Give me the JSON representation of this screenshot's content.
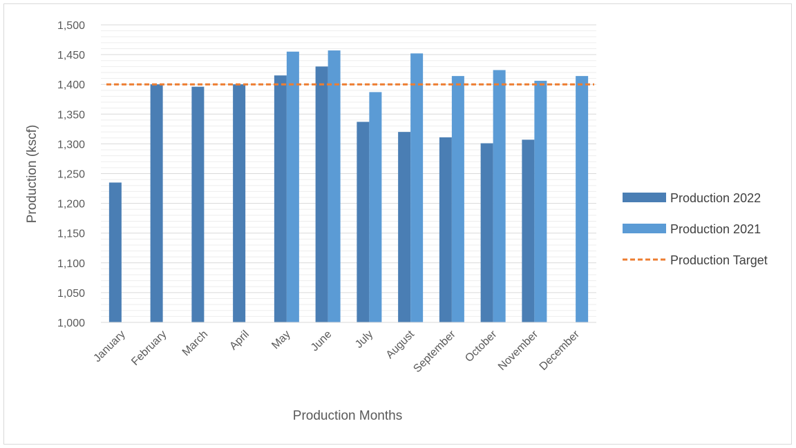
{
  "chart_data": {
    "type": "bar",
    "categories": [
      "January",
      "February",
      "March",
      "April",
      "May",
      "June",
      "July",
      "August",
      "September",
      "October",
      "November",
      "December"
    ],
    "series": [
      {
        "name": "Production 2022",
        "color": "#4a7eb4",
        "values": [
          1235,
          1400,
          1396,
          1400,
          1415,
          1430,
          1337,
          1320,
          1311,
          1301,
          1307,
          null
        ]
      },
      {
        "name": "Production 2021",
        "color": "#5b9bd5",
        "values": [
          null,
          null,
          null,
          null,
          1455,
          1457,
          1387,
          1452,
          1414,
          1424,
          1406,
          1414
        ]
      }
    ],
    "target_line": {
      "name": "Production Target",
      "color": "#ed7d31",
      "value": 1400,
      "style": "dashed"
    },
    "xlabel": "Production Months",
    "ylabel": "Production (kscf)",
    "ylim": [
      1000,
      1500
    ],
    "yticks": [
      1000,
      1050,
      1100,
      1150,
      1200,
      1250,
      1300,
      1350,
      1400,
      1450,
      1500
    ],
    "ytick_labels": [
      "1,000",
      "1,050",
      "1,100",
      "1,150",
      "1,200",
      "1,250",
      "1,300",
      "1,350",
      "1,400",
      "1,450",
      "1,500"
    ],
    "minor_grid_step": 10,
    "grid": true,
    "legend_position": "right"
  }
}
